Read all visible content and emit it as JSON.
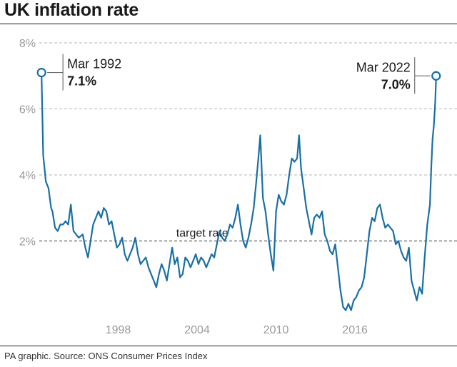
{
  "header": {
    "title": "UK inflation rate"
  },
  "footer": {
    "source": "PA graphic. Source: ONS Consumer Prices Index"
  },
  "colors": {
    "line": "#1a6fa3",
    "grid": "#b5b5b5",
    "target": "#333333",
    "tick_text": "#9a9a9a"
  },
  "chart_data": {
    "type": "line",
    "title": "UK inflation rate",
    "xlabel": "",
    "ylabel": "",
    "x_ticks": [
      "1998",
      "2004",
      "2010",
      "2016"
    ],
    "y_ticks": [
      "8%",
      "6%",
      "4%",
      "2%"
    ],
    "ylim": [
      0,
      8
    ],
    "xlim": [
      1992.0,
      2022.4
    ],
    "grid": "horizontal dashed",
    "target_line": {
      "value": 2,
      "label": "target rate"
    },
    "annotations": [
      {
        "date": "Mar 1992",
        "value": "7.1%",
        "x": 1992.17,
        "y": 7.1
      },
      {
        "date": "Mar 2022",
        "value": "7.0%",
        "x": 2022.17,
        "y": 7.0
      }
    ],
    "series": [
      {
        "values": [
          [
            1992.17,
            7.1
          ],
          [
            1992.3,
            4.6
          ],
          [
            1992.5,
            3.8
          ],
          [
            1992.7,
            3.6
          ],
          [
            1992.9,
            3.0
          ],
          [
            1993.0,
            2.9
          ],
          [
            1993.2,
            2.4
          ],
          [
            1993.4,
            2.3
          ],
          [
            1993.6,
            2.5
          ],
          [
            1993.8,
            2.5
          ],
          [
            1994.0,
            2.6
          ],
          [
            1994.2,
            2.5
          ],
          [
            1994.4,
            3.1
          ],
          [
            1994.6,
            2.3
          ],
          [
            1994.8,
            2.2
          ],
          [
            1995.0,
            2.1
          ],
          [
            1995.3,
            2.2
          ],
          [
            1995.5,
            1.8
          ],
          [
            1995.7,
            1.5
          ],
          [
            1995.9,
            2.0
          ],
          [
            1996.1,
            2.5
          ],
          [
            1996.3,
            2.7
          ],
          [
            1996.5,
            2.9
          ],
          [
            1996.7,
            2.7
          ],
          [
            1996.9,
            3.0
          ],
          [
            1997.1,
            2.9
          ],
          [
            1997.3,
            2.5
          ],
          [
            1997.5,
            2.6
          ],
          [
            1997.7,
            2.2
          ],
          [
            1997.9,
            1.8
          ],
          [
            1998.1,
            1.9
          ],
          [
            1998.3,
            2.1
          ],
          [
            1998.5,
            1.6
          ],
          [
            1998.7,
            1.4
          ],
          [
            1998.9,
            1.6
          ],
          [
            1999.1,
            1.8
          ],
          [
            1999.3,
            2.1
          ],
          [
            1999.5,
            1.6
          ],
          [
            1999.7,
            1.3
          ],
          [
            1999.9,
            1.4
          ],
          [
            2000.1,
            1.5
          ],
          [
            2000.3,
            1.2
          ],
          [
            2000.5,
            1.0
          ],
          [
            2000.7,
            0.8
          ],
          [
            2000.9,
            0.6
          ],
          [
            2001.1,
            1.0
          ],
          [
            2001.3,
            1.3
          ],
          [
            2001.5,
            1.1
          ],
          [
            2001.7,
            0.8
          ],
          [
            2001.9,
            1.3
          ],
          [
            2002.1,
            1.8
          ],
          [
            2002.3,
            1.3
          ],
          [
            2002.5,
            1.5
          ],
          [
            2002.7,
            0.9
          ],
          [
            2002.9,
            1.0
          ],
          [
            2003.1,
            1.5
          ],
          [
            2003.3,
            1.4
          ],
          [
            2003.5,
            1.2
          ],
          [
            2003.7,
            1.4
          ],
          [
            2003.9,
            1.6
          ],
          [
            2004.1,
            1.3
          ],
          [
            2004.3,
            1.5
          ],
          [
            2004.5,
            1.4
          ],
          [
            2004.7,
            1.2
          ],
          [
            2004.9,
            1.4
          ],
          [
            2005.1,
            1.6
          ],
          [
            2005.3,
            1.5
          ],
          [
            2005.5,
            1.9
          ],
          [
            2005.7,
            2.3
          ],
          [
            2005.9,
            2.1
          ],
          [
            2006.1,
            2.0
          ],
          [
            2006.3,
            2.2
          ],
          [
            2006.5,
            2.5
          ],
          [
            2006.7,
            2.4
          ],
          [
            2006.9,
            2.7
          ],
          [
            2007.1,
            3.1
          ],
          [
            2007.3,
            2.5
          ],
          [
            2007.5,
            2.0
          ],
          [
            2007.7,
            1.8
          ],
          [
            2007.9,
            2.1
          ],
          [
            2008.1,
            2.5
          ],
          [
            2008.3,
            3.0
          ],
          [
            2008.5,
            3.8
          ],
          [
            2008.7,
            4.7
          ],
          [
            2008.8,
            5.2
          ],
          [
            2009.0,
            3.3
          ],
          [
            2009.2,
            2.9
          ],
          [
            2009.4,
            2.2
          ],
          [
            2009.6,
            1.6
          ],
          [
            2009.8,
            1.1
          ],
          [
            2010.0,
            2.9
          ],
          [
            2010.2,
            3.4
          ],
          [
            2010.4,
            3.2
          ],
          [
            2010.6,
            3.1
          ],
          [
            2010.8,
            3.4
          ],
          [
            2011.0,
            4.0
          ],
          [
            2011.2,
            4.5
          ],
          [
            2011.4,
            4.4
          ],
          [
            2011.6,
            4.5
          ],
          [
            2011.75,
            5.2
          ],
          [
            2011.9,
            4.2
          ],
          [
            2012.1,
            3.6
          ],
          [
            2012.3,
            3.0
          ],
          [
            2012.5,
            2.6
          ],
          [
            2012.7,
            2.2
          ],
          [
            2012.9,
            2.7
          ],
          [
            2013.1,
            2.8
          ],
          [
            2013.3,
            2.7
          ],
          [
            2013.5,
            2.9
          ],
          [
            2013.7,
            2.2
          ],
          [
            2013.9,
            2.0
          ],
          [
            2014.1,
            1.7
          ],
          [
            2014.3,
            1.6
          ],
          [
            2014.5,
            1.9
          ],
          [
            2014.7,
            1.2
          ],
          [
            2014.9,
            0.5
          ],
          [
            2015.1,
            0.0
          ],
          [
            2015.3,
            -0.1
          ],
          [
            2015.5,
            0.1
          ],
          [
            2015.7,
            -0.1
          ],
          [
            2015.9,
            0.2
          ],
          [
            2016.1,
            0.3
          ],
          [
            2016.3,
            0.5
          ],
          [
            2016.5,
            0.6
          ],
          [
            2016.7,
            0.9
          ],
          [
            2016.9,
            1.6
          ],
          [
            2017.1,
            2.3
          ],
          [
            2017.3,
            2.7
          ],
          [
            2017.5,
            2.6
          ],
          [
            2017.7,
            3.0
          ],
          [
            2017.9,
            3.1
          ],
          [
            2018.1,
            2.7
          ],
          [
            2018.3,
            2.4
          ],
          [
            2018.5,
            2.5
          ],
          [
            2018.7,
            2.4
          ],
          [
            2018.9,
            2.3
          ],
          [
            2019.1,
            1.9
          ],
          [
            2019.3,
            2.0
          ],
          [
            2019.5,
            1.7
          ],
          [
            2019.7,
            1.5
          ],
          [
            2019.9,
            1.4
          ],
          [
            2020.1,
            1.8
          ],
          [
            2020.3,
            0.8
          ],
          [
            2020.5,
            0.5
          ],
          [
            2020.7,
            0.2
          ],
          [
            2020.9,
            0.6
          ],
          [
            2021.1,
            0.4
          ],
          [
            2021.3,
            1.5
          ],
          [
            2021.5,
            2.5
          ],
          [
            2021.7,
            3.1
          ],
          [
            2021.8,
            4.2
          ],
          [
            2021.9,
            5.1
          ],
          [
            2022.0,
            5.5
          ],
          [
            2022.1,
            6.2
          ],
          [
            2022.17,
            7.0
          ]
        ]
      }
    ]
  }
}
